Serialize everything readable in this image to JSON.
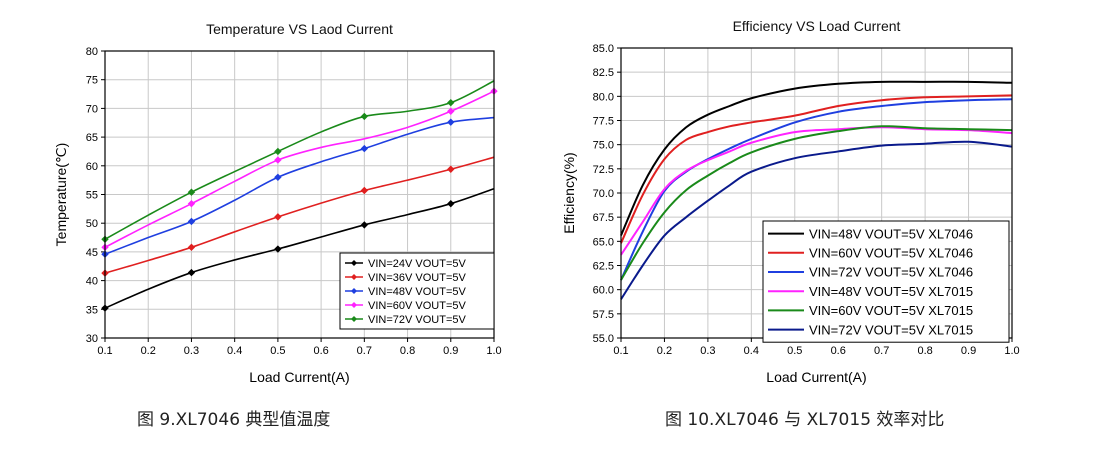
{
  "captions": {
    "left": "图 9.XL7046 典型值温度",
    "right": "图 10.XL7046 与 XL7015 效率对比"
  },
  "chart_data": [
    {
      "type": "line",
      "title": "Temperature VS Laod Current",
      "xlabel": "Load Current(A)",
      "ylabel": "Temperature(℃)",
      "xlim": [
        0.1,
        1.0
      ],
      "ylim": [
        30,
        80
      ],
      "xticks": [
        "0.1",
        "0.2",
        "0.3",
        "0.4",
        "0.5",
        "0.6",
        "0.7",
        "0.8",
        "0.9",
        "1.0"
      ],
      "yticks": [
        "30",
        "35",
        "40",
        "45",
        "50",
        "55",
        "60",
        "65",
        "70",
        "75",
        "80"
      ],
      "grid": true,
      "legend_position": "bottom-right",
      "markers": true,
      "series": [
        {
          "name": "VIN=24V VOUT=5V",
          "color": "#000000",
          "x": [
            0.1,
            0.2,
            0.3,
            0.4,
            0.5,
            0.6,
            0.7,
            0.8,
            0.9,
            1.0
          ],
          "values": [
            35.2,
            38.5,
            41.4,
            43.6,
            45.5,
            47.6,
            49.7,
            51.5,
            53.4,
            56.0
          ],
          "marker_x": [
            0.1,
            0.3,
            0.5,
            0.7,
            0.9
          ]
        },
        {
          "name": "VIN=36V VOUT=5V",
          "color": "#e02020",
          "x": [
            0.1,
            0.2,
            0.3,
            0.4,
            0.5,
            0.6,
            0.7,
            0.8,
            0.9,
            1.0
          ],
          "values": [
            41.3,
            43.5,
            45.8,
            48.5,
            51.1,
            53.5,
            55.7,
            57.5,
            59.4,
            61.5
          ],
          "marker_x": [
            0.1,
            0.3,
            0.5,
            0.7,
            0.9
          ]
        },
        {
          "name": "VIN=48V VOUT=5V",
          "color": "#1f3fe0",
          "x": [
            0.1,
            0.2,
            0.3,
            0.4,
            0.5,
            0.6,
            0.7,
            0.8,
            0.9,
            1.0
          ],
          "values": [
            44.6,
            47.5,
            50.3,
            54.0,
            58.0,
            60.7,
            63.0,
            65.5,
            67.6,
            68.4
          ],
          "marker_x": [
            0.1,
            0.3,
            0.5,
            0.7,
            0.9
          ]
        },
        {
          "name": "VIN=60V VOUT=5V",
          "color": "#ff22ff",
          "x": [
            0.1,
            0.2,
            0.3,
            0.4,
            0.5,
            0.6,
            0.7,
            0.8,
            0.9,
            1.0
          ],
          "values": [
            45.8,
            49.7,
            53.4,
            57.3,
            61.0,
            63.2,
            64.7,
            66.7,
            69.5,
            73.0
          ],
          "marker_x": [
            0.1,
            0.3,
            0.5,
            0.9,
            1.0
          ]
        },
        {
          "name": "VIN=72V VOUT=5V",
          "color": "#1a8a1a",
          "x": [
            0.1,
            0.2,
            0.3,
            0.4,
            0.5,
            0.6,
            0.7,
            0.8,
            0.9,
            1.0
          ],
          "values": [
            47.2,
            51.4,
            55.4,
            59.0,
            62.5,
            65.9,
            68.6,
            69.5,
            71.0,
            74.8
          ],
          "marker_x": [
            0.1,
            0.3,
            0.5,
            0.7,
            0.9
          ]
        }
      ]
    },
    {
      "type": "line",
      "title": "Efficiency VS Load Current",
      "xlabel": "Load Current(A)",
      "ylabel": "Efficiency(%)",
      "xlim": [
        0.1,
        1.0
      ],
      "ylim": [
        55.0,
        85.0
      ],
      "xticks": [
        "0.1",
        "0.2",
        "0.3",
        "0.4",
        "0.5",
        "0.6",
        "0.7",
        "0.8",
        "0.9",
        "1.0"
      ],
      "yticks": [
        "55.0",
        "57.5",
        "60.0",
        "62.5",
        "65.0",
        "67.5",
        "70.0",
        "72.5",
        "75.0",
        "77.5",
        "80.0",
        "82.5",
        "85.0"
      ],
      "grid": true,
      "legend_position": "bottom-right",
      "markers": false,
      "series": [
        {
          "name": "VIN=48V VOUT=5V XL7046",
          "color": "#000000",
          "x": [
            0.1,
            0.15,
            0.2,
            0.25,
            0.3,
            0.35,
            0.4,
            0.5,
            0.6,
            0.7,
            0.8,
            0.9,
            1.0
          ],
          "values": [
            65.6,
            70.8,
            74.5,
            76.8,
            78.1,
            79.0,
            79.8,
            80.8,
            81.3,
            81.5,
            81.5,
            81.5,
            81.4
          ]
        },
        {
          "name": "VIN=60V VOUT=5V XL7046",
          "color": "#e02020",
          "x": [
            0.1,
            0.15,
            0.2,
            0.25,
            0.3,
            0.35,
            0.4,
            0.5,
            0.6,
            0.7,
            0.8,
            0.9,
            1.0
          ],
          "values": [
            64.8,
            69.8,
            73.5,
            75.5,
            76.3,
            76.9,
            77.3,
            78.0,
            79.0,
            79.6,
            79.9,
            80.0,
            80.1
          ]
        },
        {
          "name": "VIN=72V VOUT=5V XL7046",
          "color": "#1f3fe0",
          "x": [
            0.1,
            0.15,
            0.2,
            0.25,
            0.3,
            0.35,
            0.4,
            0.5,
            0.6,
            0.7,
            0.8,
            0.9,
            1.0
          ],
          "values": [
            61.0,
            66.0,
            70.2,
            72.2,
            73.5,
            74.6,
            75.6,
            77.3,
            78.4,
            79.0,
            79.4,
            79.6,
            79.7
          ]
        },
        {
          "name": "VIN=48V VOUT=5V XL7015",
          "color": "#ff22ff",
          "x": [
            0.1,
            0.15,
            0.2,
            0.25,
            0.3,
            0.35,
            0.4,
            0.5,
            0.6,
            0.7,
            0.8,
            0.9,
            1.0
          ],
          "values": [
            63.6,
            67.0,
            70.4,
            72.3,
            73.4,
            74.3,
            75.2,
            76.3,
            76.6,
            76.8,
            76.6,
            76.5,
            76.2
          ]
        },
        {
          "name": "VIN=60V VOUT=5V XL7015",
          "color": "#1a8a1a",
          "x": [
            0.1,
            0.15,
            0.2,
            0.25,
            0.3,
            0.35,
            0.4,
            0.5,
            0.6,
            0.7,
            0.8,
            0.9,
            1.0
          ],
          "values": [
            61.0,
            64.8,
            68.0,
            70.3,
            71.8,
            73.1,
            74.2,
            75.6,
            76.4,
            76.9,
            76.7,
            76.6,
            76.5
          ]
        },
        {
          "name": "VIN=72V VOUT=5V XL7015",
          "color": "#0a1a8c",
          "x": [
            0.1,
            0.15,
            0.2,
            0.25,
            0.3,
            0.35,
            0.4,
            0.5,
            0.6,
            0.7,
            0.8,
            0.9,
            1.0
          ],
          "values": [
            59.0,
            62.5,
            65.6,
            67.5,
            69.2,
            70.8,
            72.2,
            73.6,
            74.3,
            74.9,
            75.1,
            75.3,
            74.8
          ]
        }
      ]
    }
  ]
}
